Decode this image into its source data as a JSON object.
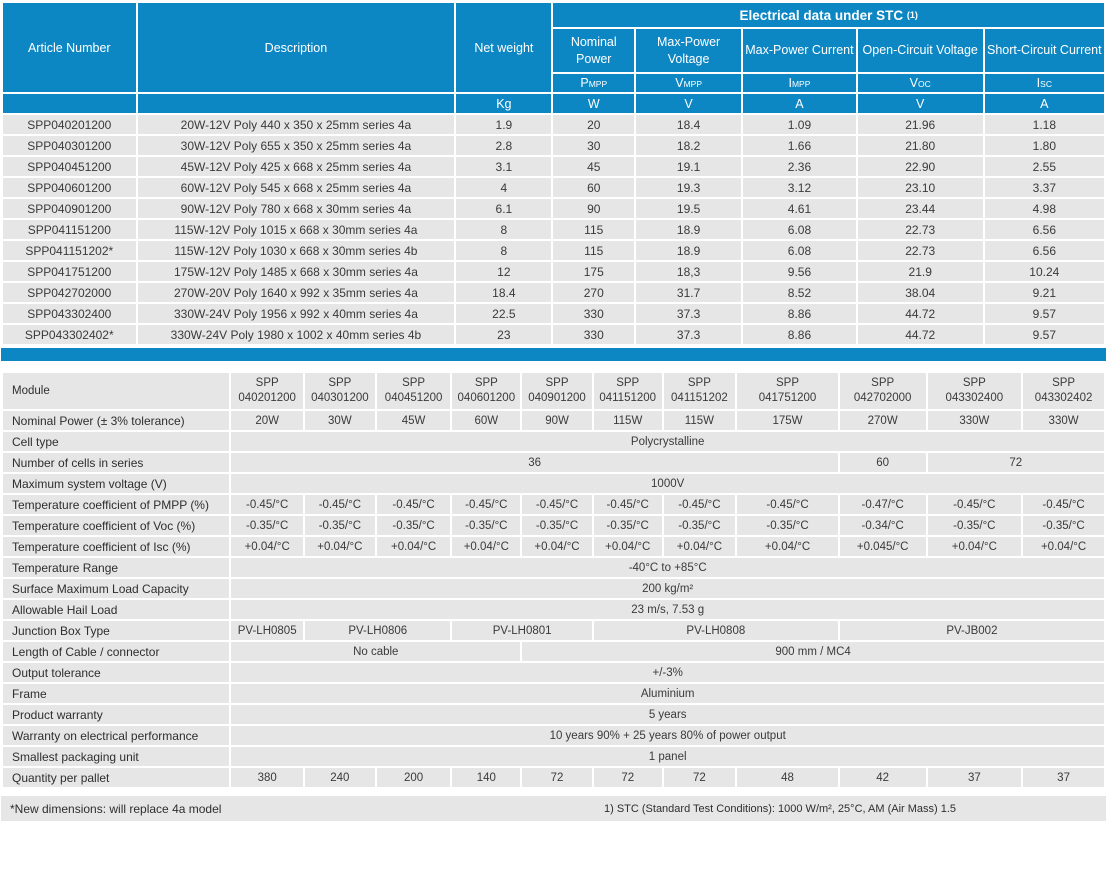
{
  "colors": {
    "header_blue": "#0d87c4",
    "row_gray": "#e6e6e6",
    "header_text": "#ffffff",
    "body_text": "#3a3a3a"
  },
  "top_table": {
    "headers": {
      "article": "Article Number",
      "description": "Description",
      "net_weight": "Net weight",
      "stc_title": "Electrical data under STC",
      "stc_sup": "(1)",
      "kg_unit": "Kg",
      "elec_cols": [
        {
          "name": "Nominal Power",
          "sym_base": "P",
          "sym_sub": "MPP",
          "unit": "W"
        },
        {
          "name": "Max-Power Voltage",
          "sym_base": "V",
          "sym_sub": "MPP",
          "unit": "V"
        },
        {
          "name": "Max-Power Current",
          "sym_base": "I",
          "sym_sub": "MPP",
          "unit": "A"
        },
        {
          "name": "Open-Circuit Voltage",
          "sym_base": "V",
          "sym_sub": "OC",
          "unit": "V"
        },
        {
          "name": "Short-Circuit Current",
          "sym_base": "I",
          "sym_sub": "SC",
          "unit": "A"
        }
      ]
    },
    "rows": [
      [
        "SPP040201200",
        "20W-12V Poly 440 x 350 x 25mm series 4a",
        "1.9",
        "20",
        "18.4",
        "1.09",
        "21.96",
        "1.18"
      ],
      [
        "SPP040301200",
        "30W-12V Poly 655 x 350 x 25mm series 4a",
        "2.8",
        "30",
        "18.2",
        "1.66",
        "21.80",
        "1.80"
      ],
      [
        "SPP040451200",
        "45W-12V Poly 425 x 668 x 25mm series 4a",
        "3.1",
        "45",
        "19.1",
        "2.36",
        "22.90",
        "2.55"
      ],
      [
        "SPP040601200",
        "60W-12V Poly 545 x 668 x 25mm series 4a",
        "4",
        "60",
        "19.3",
        "3.12",
        "23.10",
        "3.37"
      ],
      [
        "SPP040901200",
        "90W-12V Poly 780 x 668 x 30mm series 4a",
        "6.1",
        "90",
        "19.5",
        "4.61",
        "23.44",
        "4.98"
      ],
      [
        "SPP041151200",
        "115W-12V Poly 1015 x 668 x 30mm series 4a",
        "8",
        "115",
        "18.9",
        "6.08",
        "22.73",
        "6.56"
      ],
      [
        "SPP041151202*",
        "115W-12V Poly 1030 x 668 x 30mm series 4b",
        "8",
        "115",
        "18.9",
        "6.08",
        "22.73",
        "6.56"
      ],
      [
        "SPP041751200",
        "175W-12V Poly 1485 x 668 x 30mm series 4a",
        "12",
        "175",
        "18,3",
        "9.56",
        "21.9",
        "10.24"
      ],
      [
        "SPP042702000",
        "270W-20V Poly 1640 x 992 x 35mm series 4a",
        "18.4",
        "270",
        "31.7",
        "8.52",
        "38.04",
        "9.21"
      ],
      [
        "SPP043302400",
        "330W-24V Poly 1956 x 992 x 40mm series 4a",
        "22.5",
        "330",
        "37.3",
        "8.86",
        "44.72",
        "9.57"
      ],
      [
        "SPP043302402*",
        "330W-24V Poly 1980 x 1002 x 40mm series 4b",
        "23",
        "330",
        "37.3",
        "8.86",
        "44.72",
        "9.57"
      ]
    ]
  },
  "bottom_table": {
    "module_label": "Module",
    "modules": [
      {
        "line1": "SPP",
        "line2": "040201200"
      },
      {
        "line1": "SPP",
        "line2": "040301200"
      },
      {
        "line1": "SPP",
        "line2": "040451200"
      },
      {
        "line1": "SPP",
        "line2": "040601200"
      },
      {
        "line1": "SPP",
        "line2": "040901200"
      },
      {
        "line1": "SPP",
        "line2": "041151200"
      },
      {
        "line1": "SPP",
        "line2": "041151202"
      },
      {
        "line1": "SPP",
        "line2": "041751200"
      },
      {
        "line1": "SPP",
        "line2": "042702000"
      },
      {
        "line1": "SPP",
        "line2": "043302400"
      },
      {
        "line1": "SPP",
        "line2": "043302402"
      }
    ],
    "rows": [
      {
        "label": "Nominal Power  (± 3% tolerance)",
        "cells": [
          {
            "t": "20W",
            "s": 1
          },
          {
            "t": "30W",
            "s": 1
          },
          {
            "t": "45W",
            "s": 1
          },
          {
            "t": "60W",
            "s": 1
          },
          {
            "t": "90W",
            "s": 1
          },
          {
            "t": "115W",
            "s": 1
          },
          {
            "t": "115W",
            "s": 1
          },
          {
            "t": "175W",
            "s": 1
          },
          {
            "t": "270W",
            "s": 1
          },
          {
            "t": "330W",
            "s": 1
          },
          {
            "t": "330W",
            "s": 1
          }
        ]
      },
      {
        "label": "Cell type",
        "cells": [
          {
            "t": "Polycrystalline",
            "s": 11
          }
        ]
      },
      {
        "label": "Number of cells in series",
        "cells": [
          {
            "t": "36",
            "s": 8
          },
          {
            "t": "60",
            "s": 1
          },
          {
            "t": "72",
            "s": 2
          }
        ]
      },
      {
        "label": "Maximum system voltage (V)",
        "cells": [
          {
            "t": "1000V",
            "s": 11
          }
        ]
      },
      {
        "label": "Temperature coefficient of PMPP (%)",
        "cells": [
          {
            "t": "-0.45/°C",
            "s": 1
          },
          {
            "t": "-0.45/°C",
            "s": 1
          },
          {
            "t": "-0.45/°C",
            "s": 1
          },
          {
            "t": "-0.45/°C",
            "s": 1
          },
          {
            "t": "-0.45/°C",
            "s": 1
          },
          {
            "t": "-0.45/°C",
            "s": 1
          },
          {
            "t": "-0.45/°C",
            "s": 1
          },
          {
            "t": "-0.45/°C",
            "s": 1
          },
          {
            "t": "-0.47/°C",
            "s": 1
          },
          {
            "t": "-0.45/°C",
            "s": 1
          },
          {
            "t": "-0.45/°C",
            "s": 1
          }
        ]
      },
      {
        "label": "Temperature coefficient of Voc (%)",
        "cells": [
          {
            "t": "-0.35/°C",
            "s": 1
          },
          {
            "t": "-0.35/°C",
            "s": 1
          },
          {
            "t": "-0.35/°C",
            "s": 1
          },
          {
            "t": "-0.35/°C",
            "s": 1
          },
          {
            "t": "-0.35/°C",
            "s": 1
          },
          {
            "t": "-0.35/°C",
            "s": 1
          },
          {
            "t": "-0.35/°C",
            "s": 1
          },
          {
            "t": "-0.35/°C",
            "s": 1
          },
          {
            "t": "-0.34/°C",
            "s": 1
          },
          {
            "t": "-0.35/°C",
            "s": 1
          },
          {
            "t": "-0.35/°C",
            "s": 1
          }
        ]
      },
      {
        "label": "Temperature coefficient of Isc (%)",
        "cells": [
          {
            "t": "+0.04/°C",
            "s": 1
          },
          {
            "t": "+0.04/°C",
            "s": 1
          },
          {
            "t": "+0.04/°C",
            "s": 1
          },
          {
            "t": "+0.04/°C",
            "s": 1
          },
          {
            "t": "+0.04/°C",
            "s": 1
          },
          {
            "t": "+0.04/°C",
            "s": 1
          },
          {
            "t": "+0.04/°C",
            "s": 1
          },
          {
            "t": "+0.04/°C",
            "s": 1
          },
          {
            "t": "+0.045/°C",
            "s": 1
          },
          {
            "t": "+0.04/°C",
            "s": 1
          },
          {
            "t": "+0.04/°C",
            "s": 1
          }
        ]
      },
      {
        "label": "Temperature Range",
        "cells": [
          {
            "t": "-40°C to +85°C",
            "s": 11
          }
        ]
      },
      {
        "label": "Surface Maximum Load Capacity",
        "cells": [
          {
            "t": "200 kg/m²",
            "s": 11
          }
        ]
      },
      {
        "label": "Allowable Hail Load",
        "cells": [
          {
            "t": "23 m/s, 7.53 g",
            "s": 11
          }
        ]
      },
      {
        "label": "Junction Box Type",
        "cells": [
          {
            "t": "PV-LH0805",
            "s": 1
          },
          {
            "t": "PV-LH0806",
            "s": 2
          },
          {
            "t": "PV-LH0801",
            "s": 2
          },
          {
            "t": "PV-LH0808",
            "s": 3
          },
          {
            "t": "PV-JB002",
            "s": 3
          }
        ]
      },
      {
        "label": "Length of Cable / connector",
        "cells": [
          {
            "t": "No cable",
            "s": 4
          },
          {
            "t": "900 mm / MC4",
            "s": 7
          }
        ]
      },
      {
        "label": "Output tolerance",
        "cells": [
          {
            "t": "+/-3%",
            "s": 11
          }
        ]
      },
      {
        "label": "Frame",
        "cells": [
          {
            "t": "Aluminium",
            "s": 11
          }
        ]
      },
      {
        "label": "Product warranty",
        "cells": [
          {
            "t": "5 years",
            "s": 11
          }
        ]
      },
      {
        "label": "Warranty on electrical performance",
        "cells": [
          {
            "t": "10 years 90% + 25 years 80% of power output",
            "s": 11
          }
        ]
      },
      {
        "label": "Smallest packaging unit",
        "cells": [
          {
            "t": "1 panel",
            "s": 11
          }
        ]
      },
      {
        "label": "Quantity per pallet",
        "cells": [
          {
            "t": "380",
            "s": 1
          },
          {
            "t": "240",
            "s": 1
          },
          {
            "t": "200",
            "s": 1
          },
          {
            "t": "140",
            "s": 1
          },
          {
            "t": "72",
            "s": 1
          },
          {
            "t": "72",
            "s": 1
          },
          {
            "t": "72",
            "s": 1
          },
          {
            "t": "48",
            "s": 1
          },
          {
            "t": "42",
            "s": 1
          },
          {
            "t": "37",
            "s": 1
          },
          {
            "t": "37",
            "s": 1
          }
        ]
      }
    ]
  },
  "footer": {
    "left": "*New dimensions: will replace 4a model",
    "note": "1) STC (Standard Test Conditions): 1000 W/m², 25°C, AM (Air Mass) 1.5"
  }
}
